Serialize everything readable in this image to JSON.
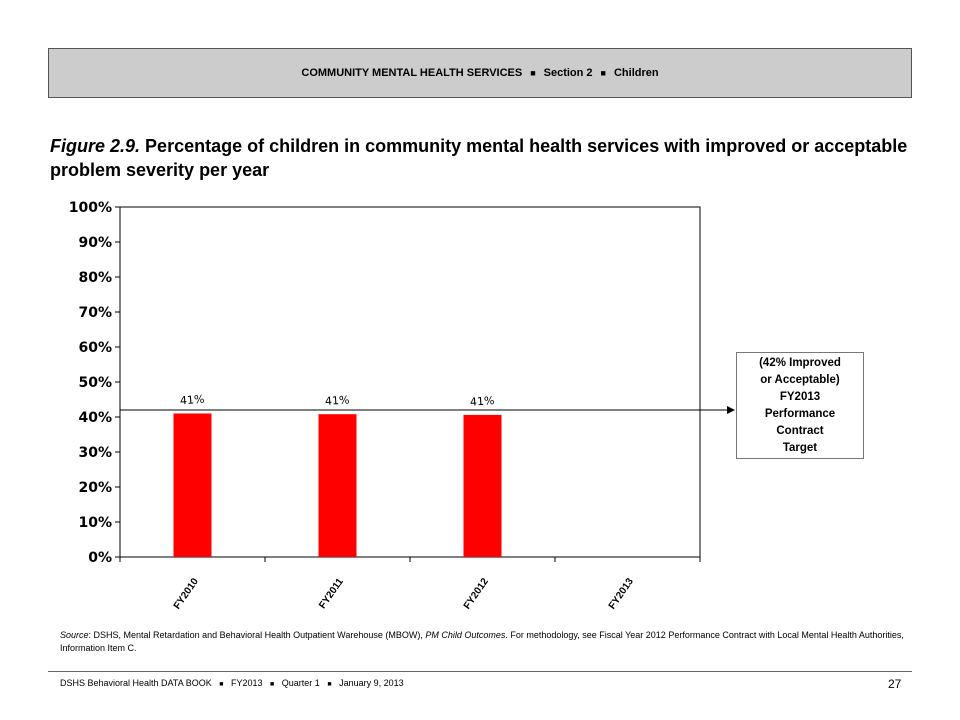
{
  "header": {
    "part1": "COMMUNITY MENTAL HEALTH SERVICES",
    "part2": "Section 2",
    "part3": "Children",
    "separator": "■"
  },
  "figure": {
    "number": "Figure 2.9.",
    "title": "Percentage of children in community mental health services with improved or acceptable problem severity per year"
  },
  "chart_data": {
    "type": "bar",
    "categories": [
      "FY2010",
      "FY2011",
      "FY2012",
      "FY2013"
    ],
    "values": [
      41,
      40.8,
      40.6,
      null
    ],
    "data_labels": [
      "41%",
      "41%",
      "41%",
      ""
    ],
    "ylim": [
      0,
      100
    ],
    "yticks": [
      "0%",
      "10%",
      "20%",
      "30%",
      "40%",
      "50%",
      "60%",
      "70%",
      "80%",
      "90%",
      "100%"
    ],
    "target_line": 42,
    "bar_color": "#ff0000",
    "grid": false,
    "legend": "none"
  },
  "callout": {
    "lines": [
      "(42% Improved",
      "or Acceptable)",
      "FY2013",
      "Performance",
      "Contract",
      "Target"
    ]
  },
  "source": {
    "label": "Source",
    "text1": ": DSHS, Mental Retardation and Behavioral Health Outpatient Warehouse (MBOW), ",
    "italic": "PM Child Outcomes",
    "text2": ". For methodology, see Fiscal Year 2012 Performance Contract with Local Mental Health Authorities, Information Item C."
  },
  "footer": {
    "part1": "DSHS Behavioral Health DATA BOOK",
    "part2": "FY2013",
    "part3": "Quarter 1",
    "part4": "January 9, 2013",
    "separator": "■",
    "page": "27"
  }
}
